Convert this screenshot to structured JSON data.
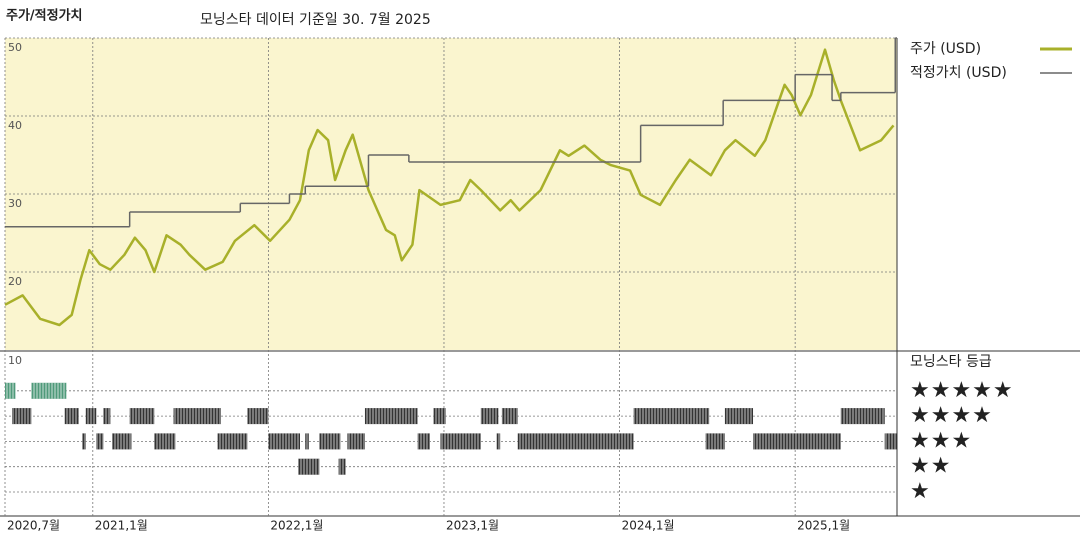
{
  "chart_data": {
    "type": "line",
    "title": "주가/적정가치",
    "subtitle": "모닝스타 데이터 기준일 30. 7월 2025",
    "xlim": [
      2020.5,
      2025.58
    ],
    "xticks": [
      {
        "value": 2020.5,
        "label": "2020,7월"
      },
      {
        "value": 2021.0,
        "label": "2021,1월"
      },
      {
        "value": 2022.0,
        "label": "2022,1월"
      },
      {
        "value": 2023.0,
        "label": "2023,1월"
      },
      {
        "value": 2024.0,
        "label": "2024,1월"
      },
      {
        "value": 2025.0,
        "label": "2025,1월"
      }
    ],
    "ylim": [
      10,
      50
    ],
    "yticks": [
      20,
      30,
      40,
      50
    ],
    "grid": true,
    "background": "#faf5cf",
    "series": [
      {
        "name": "주가 (USD)",
        "color": "#a8b02a",
        "x": [
          2020.5,
          2020.6,
          2020.7,
          2020.81,
          2020.88,
          2020.93,
          2020.98,
          2021.04,
          2021.1,
          2021.18,
          2021.24,
          2021.3,
          2021.35,
          2021.42,
          2021.5,
          2021.55,
          2021.64,
          2021.74,
          2021.81,
          2021.92,
          2022.01,
          2022.12,
          2022.18,
          2022.23,
          2022.28,
          2022.34,
          2022.38,
          2022.44,
          2022.48,
          2022.57,
          2022.67,
          2022.72,
          2022.76,
          2022.82,
          2022.86,
          2022.98,
          2023.09,
          2023.15,
          2023.21,
          2023.32,
          2023.38,
          2023.43,
          2023.55,
          2023.66,
          2023.71,
          2023.8,
          2023.89,
          2023.95,
          2024.06,
          2024.12,
          2024.23,
          2024.32,
          2024.4,
          2024.52,
          2024.6,
          2024.66,
          2024.77,
          2024.83,
          2024.89,
          2024.94,
          2024.98,
          2025.03,
          2025.09,
          2025.17,
          2025.22,
          2025.26,
          2025.37,
          2025.49,
          2025.56
        ],
        "values": [
          15.8,
          17,
          14,
          13.2,
          14.5,
          19,
          22.8,
          21,
          20.3,
          22.2,
          24.4,
          22.8,
          20,
          24.7,
          23.5,
          22.2,
          20.3,
          21.3,
          24,
          26,
          24,
          26.7,
          29.2,
          35.6,
          38.2,
          36.9,
          31.8,
          35.6,
          37.6,
          30.5,
          25.4,
          24.7,
          21.5,
          23.5,
          30.5,
          28.6,
          29.2,
          31.8,
          30.5,
          27.9,
          29.2,
          27.9,
          30.5,
          35.6,
          34.9,
          36.2,
          34.4,
          33.7,
          33,
          29.9,
          28.6,
          31.8,
          34.4,
          32.4,
          35.6,
          36.9,
          34.9,
          36.9,
          40.8,
          44,
          42.7,
          40.1,
          42.7,
          48.5,
          44.6,
          42,
          35.6,
          36.9,
          38.8
        ]
      },
      {
        "name": "적정가치 (USD)",
        "color": "#666666",
        "step": true,
        "x": [
          2020.5,
          2021.21,
          2021.84,
          2022.12,
          2022.21,
          2022.57,
          2022.8,
          2024.12,
          2024.59,
          2025.0,
          2025.21,
          2025.26,
          2025.57
        ],
        "values": [
          25.8,
          27.7,
          28.8,
          30,
          31,
          35,
          34.1,
          38.8,
          42,
          45.3,
          42,
          43,
          50
        ]
      }
    ],
    "rating_title": "모닝스타 등급",
    "rating_panel_label": "10",
    "ratings": [
      {
        "label": "★★★★★",
        "stars": 5,
        "color": "#4f9a7a",
        "segments": [
          [
            2020.5,
            2020.56
          ],
          [
            2020.65,
            2020.85
          ]
        ]
      },
      {
        "label": "★★★★",
        "stars": 4,
        "color": "#333333",
        "segments": [
          [
            2020.54,
            2020.65
          ],
          [
            2020.84,
            2020.92
          ],
          [
            2020.96,
            2021.02
          ],
          [
            2021.06,
            2021.1
          ],
          [
            2021.21,
            2021.35
          ],
          [
            2021.46,
            2021.73
          ],
          [
            2021.88,
            2022.0
          ],
          [
            2022.55,
            2022.85
          ],
          [
            2022.94,
            2023.01
          ],
          [
            2023.21,
            2023.31
          ],
          [
            2023.33,
            2023.42
          ],
          [
            2024.08,
            2024.51
          ],
          [
            2024.6,
            2024.76
          ],
          [
            2025.26,
            2025.51
          ]
        ]
      },
      {
        "label": "★★★",
        "stars": 3,
        "color": "#333333",
        "segments": [
          [
            2020.94,
            2020.96
          ],
          [
            2021.02,
            2021.06
          ],
          [
            2021.11,
            2021.22
          ],
          [
            2021.35,
            2021.47
          ],
          [
            2021.71,
            2021.88
          ],
          [
            2022.0,
            2022.18
          ],
          [
            2022.21,
            2022.23
          ],
          [
            2022.29,
            2022.41
          ],
          [
            2022.45,
            2022.55
          ],
          [
            2022.85,
            2022.92
          ],
          [
            2022.98,
            2023.21
          ],
          [
            2023.3,
            2023.32
          ],
          [
            2023.42,
            2024.08
          ],
          [
            2024.49,
            2024.6
          ],
          [
            2024.76,
            2025.26
          ],
          [
            2025.51,
            2025.58
          ]
        ]
      },
      {
        "label": "★★",
        "stars": 2,
        "color": "#333333",
        "segments": [
          [
            2022.17,
            2022.29
          ],
          [
            2022.4,
            2022.44
          ]
        ]
      },
      {
        "label": "★",
        "stars": 1,
        "color": "#333333",
        "segments": []
      }
    ]
  }
}
